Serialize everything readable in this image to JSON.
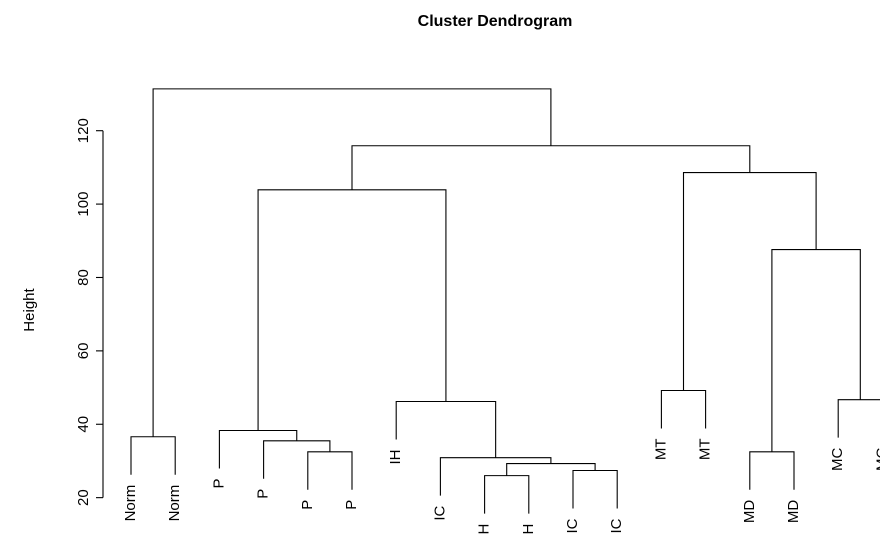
{
  "chart_data": {
    "type": "dendrogram",
    "title": "Cluster Dendrogram",
    "y_label": "Height",
    "ylim": [
      15,
      133
    ],
    "yticks": [
      20,
      40,
      60,
      80,
      100,
      120
    ],
    "tree": {
      "height": 131.4,
      "children": [
        {
          "height": 36.6,
          "children": [
            {
              "label": "Norm"
            },
            {
              "label": "Norm"
            }
          ]
        },
        {
          "height": 115.9,
          "children": [
            {
              "height": 103.9,
              "children": [
                {
                  "height": 38.3,
                  "children": [
                    {
                      "label": "P"
                    },
                    {
                      "height": 35.5,
                      "children": [
                        {
                          "label": "P"
                        },
                        {
                          "height": 32.5,
                          "children": [
                            {
                              "label": "P"
                            },
                            {
                              "label": "P"
                            }
                          ]
                        }
                      ]
                    }
                  ]
                },
                {
                  "height": 46.2,
                  "children": [
                    {
                      "label": "IH"
                    },
                    {
                      "height": 30.9,
                      "children": [
                        {
                          "label": "IC"
                        },
                        {
                          "height": 29.3,
                          "children": [
                            {
                              "height": 26.0,
                              "children": [
                                {
                                  "label": "H"
                                },
                                {
                                  "label": "H"
                                }
                              ]
                            },
                            {
                              "height": 27.4,
                              "children": [
                                {
                                  "label": "IC"
                                },
                                {
                                  "label": "IC"
                                }
                              ]
                            }
                          ]
                        }
                      ]
                    }
                  ]
                }
              ]
            },
            {
              "height": 108.6,
              "children": [
                {
                  "height": 49.2,
                  "children": [
                    {
                      "label": "MT"
                    },
                    {
                      "label": "MT"
                    }
                  ]
                },
                {
                  "height": 87.6,
                  "children": [
                    {
                      "height": 32.5,
                      "children": [
                        {
                          "label": "MD"
                        },
                        {
                          "label": "MD"
                        }
                      ]
                    },
                    {
                      "height": 46.7,
                      "children": [
                        {
                          "label": "MC"
                        },
                        {
                          "label": "MC"
                        }
                      ]
                    }
                  ]
                }
              ]
            }
          ]
        }
      ]
    }
  }
}
